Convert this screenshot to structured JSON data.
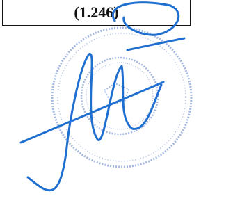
{
  "table": {
    "rows": [
      [
        "(1.246)"
      ]
    ]
  }
}
